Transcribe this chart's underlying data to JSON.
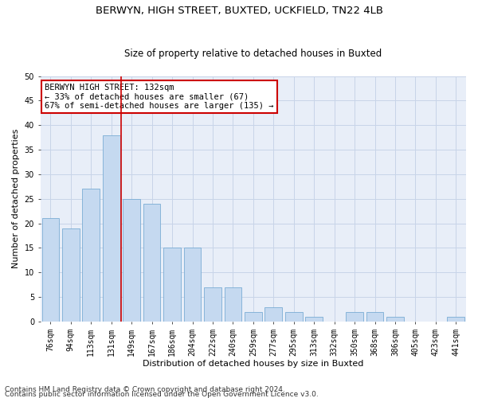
{
  "title1": "BERWYN, HIGH STREET, BUXTED, UCKFIELD, TN22 4LB",
  "title2": "Size of property relative to detached houses in Buxted",
  "xlabel": "Distribution of detached houses by size in Buxted",
  "ylabel": "Number of detached properties",
  "categories": [
    "76sqm",
    "94sqm",
    "113sqm",
    "131sqm",
    "149sqm",
    "167sqm",
    "186sqm",
    "204sqm",
    "222sqm",
    "240sqm",
    "259sqm",
    "277sqm",
    "295sqm",
    "313sqm",
    "332sqm",
    "350sqm",
    "368sqm",
    "386sqm",
    "405sqm",
    "423sqm",
    "441sqm"
  ],
  "values": [
    21,
    19,
    27,
    38,
    25,
    24,
    15,
    15,
    7,
    7,
    2,
    3,
    2,
    1,
    0,
    2,
    2,
    1,
    0,
    0,
    1
  ],
  "bar_color": "#c5d9f0",
  "bar_edge_color": "#7aadd4",
  "vline_color": "#cc0000",
  "vline_x_index": 3,
  "annotation_line1": "BERWYN HIGH STREET: 132sqm",
  "annotation_line2": "← 33% of detached houses are smaller (67)",
  "annotation_line3": "67% of semi-detached houses are larger (135) →",
  "annotation_box_facecolor": "#ffffff",
  "annotation_box_edgecolor": "#cc0000",
  "ylim": [
    0,
    50
  ],
  "yticks": [
    0,
    5,
    10,
    15,
    20,
    25,
    30,
    35,
    40,
    45,
    50
  ],
  "grid_color": "#c8d4e8",
  "bg_color": "#e8eef8",
  "footer1": "Contains HM Land Registry data © Crown copyright and database right 2024.",
  "footer2": "Contains public sector information licensed under the Open Government Licence v3.0.",
  "title_fontsize": 9.5,
  "subtitle_fontsize": 8.5,
  "axis_label_fontsize": 8,
  "tick_fontsize": 7,
  "annot_fontsize": 7.5,
  "footer_fontsize": 6.5
}
